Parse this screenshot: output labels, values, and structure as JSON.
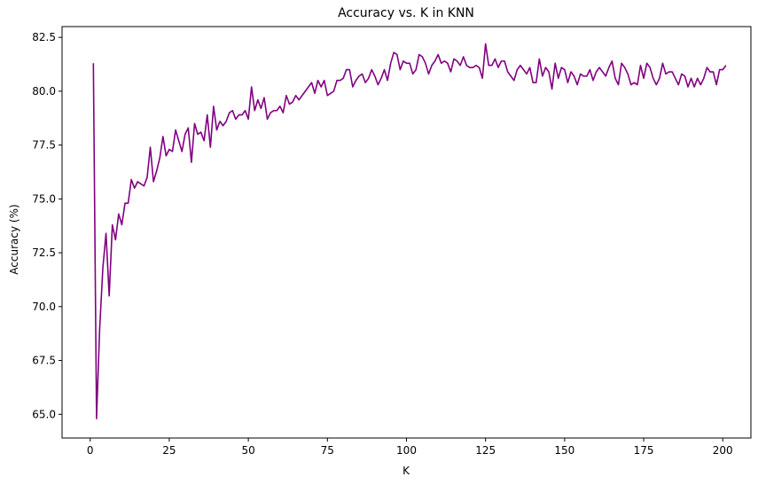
{
  "chart_data": {
    "type": "line",
    "title": "Accuracy vs. K in KNN",
    "xlabel": "K",
    "ylabel": "Accuracy (%)",
    "xlim": [
      -8.9,
      208.9
    ],
    "ylim": [
      63.9,
      83.0
    ],
    "xticks": [
      0,
      25,
      50,
      75,
      100,
      125,
      150,
      175,
      200
    ],
    "yticks": [
      65.0,
      67.5,
      70.0,
      72.5,
      75.0,
      77.5,
      80.0,
      82.5
    ],
    "xtick_labels": [
      "0",
      "25",
      "50",
      "75",
      "100",
      "125",
      "150",
      "175",
      "200"
    ],
    "ytick_labels": [
      "65.0",
      "67.5",
      "70.0",
      "72.5",
      "75.0",
      "77.5",
      "80.0",
      "82.5"
    ],
    "grid": false,
    "series": [
      {
        "color": "#800080",
        "x_start": 1,
        "x_step": 1,
        "values": [
          81.3,
          64.8,
          69.0,
          71.8,
          73.4,
          70.5,
          73.8,
          73.1,
          74.3,
          73.8,
          74.8,
          74.8,
          75.9,
          75.5,
          75.8,
          75.7,
          75.6,
          76.0,
          77.4,
          75.8,
          76.3,
          76.9,
          77.9,
          77.0,
          77.3,
          77.2,
          78.2,
          77.7,
          77.2,
          78.0,
          78.3,
          76.7,
          78.5,
          78.0,
          78.1,
          77.7,
          78.9,
          77.4,
          79.3,
          78.2,
          78.6,
          78.4,
          78.6,
          79.0,
          79.1,
          78.7,
          78.9,
          78.9,
          79.1,
          78.7,
          80.2,
          79.1,
          79.6,
          79.2,
          79.7,
          78.7,
          79.0,
          79.1,
          79.1,
          79.3,
          79.0,
          79.8,
          79.4,
          79.5,
          79.8,
          79.6,
          79.8,
          80.0,
          80.2,
          80.4,
          79.9,
          80.5,
          80.2,
          80.5,
          79.8,
          79.9,
          80.0,
          80.5,
          80.5,
          80.6,
          81.0,
          81.0,
          80.2,
          80.5,
          80.7,
          80.8,
          80.4,
          80.6,
          81.0,
          80.7,
          80.3,
          80.6,
          81.0,
          80.5,
          81.3,
          81.8,
          81.7,
          81.0,
          81.4,
          81.3,
          81.3,
          80.8,
          81.0,
          81.7,
          81.6,
          81.3,
          80.8,
          81.2,
          81.4,
          81.7,
          81.3,
          81.4,
          81.3,
          80.9,
          81.5,
          81.4,
          81.2,
          81.6,
          81.2,
          81.1,
          81.1,
          81.2,
          81.1,
          80.6,
          82.2,
          81.2,
          81.2,
          81.5,
          81.1,
          81.4,
          81.4,
          80.9,
          80.7,
          80.5,
          81.0,
          81.2,
          81.0,
          80.8,
          81.1,
          80.4,
          80.4,
          81.5,
          80.7,
          81.1,
          80.9,
          80.1,
          81.3,
          80.6,
          81.1,
          81.0,
          80.4,
          80.9,
          80.7,
          80.3,
          80.8,
          80.7,
          80.7,
          81.0,
          80.5,
          80.9,
          81.1,
          80.9,
          80.7,
          81.1,
          81.4,
          80.6,
          80.3,
          81.3,
          81.1,
          80.8,
          80.3,
          80.4,
          80.3,
          81.2,
          80.6,
          81.3,
          81.1,
          80.6,
          80.3,
          80.6,
          81.3,
          80.8,
          80.9,
          80.9,
          80.6,
          80.3,
          80.8,
          80.7,
          80.2,
          80.6,
          80.2,
          80.6,
          80.3,
          80.6,
          81.1,
          80.9,
          80.9,
          80.3,
          81.0,
          81.0,
          81.2
        ]
      }
    ]
  }
}
